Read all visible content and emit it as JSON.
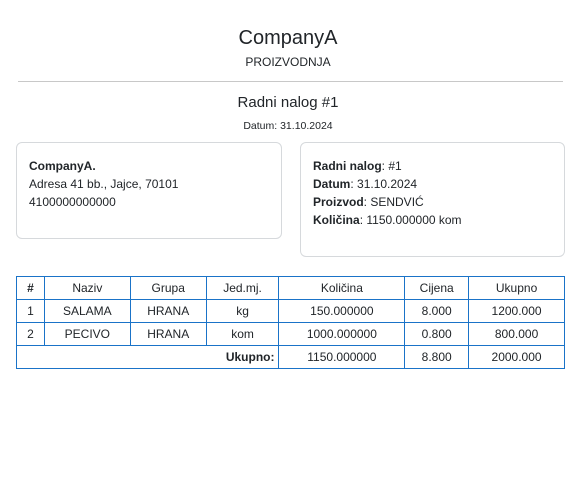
{
  "header": {
    "company": "CompanyA",
    "department": "PROIZVODNJA",
    "title": "Radni nalog #1",
    "date_label": "Datum:",
    "date_value": "31.10.2024"
  },
  "company_card": {
    "name": "CompanyA.",
    "address": "Adresa 41 bb., Jajce, 70101",
    "id_number": "4100000000000"
  },
  "order_card": {
    "order_label": "Radni nalog",
    "order_value": "#1",
    "date_label": "Datum",
    "date_value": "31.10.2024",
    "product_label": "Proizvod",
    "product_value": "SENDVIĆ",
    "quantity_label": "Količina",
    "quantity_value": "1150.000000 kom"
  },
  "table": {
    "headers": [
      "#",
      "Naziv",
      "Grupa",
      "Jed.mj.",
      "Količina",
      "Cijena",
      "Ukupno"
    ],
    "rows": [
      [
        "1",
        "SALAMA",
        "HRANA",
        "kg",
        "150.000000",
        "8.000",
        "1200.000"
      ],
      [
        "2",
        "PECIVO",
        "HRANA",
        "kom",
        "1000.000000",
        "0.800",
        "800.000"
      ]
    ],
    "total": {
      "label": "Ukupno",
      "quantity": "1150.000000",
      "price": "8.800",
      "amount": "2000.000"
    }
  },
  "colors": {
    "table_border": "#1a73c8",
    "divider": "#c8c8c8",
    "card_border": "#d6d9dc"
  }
}
